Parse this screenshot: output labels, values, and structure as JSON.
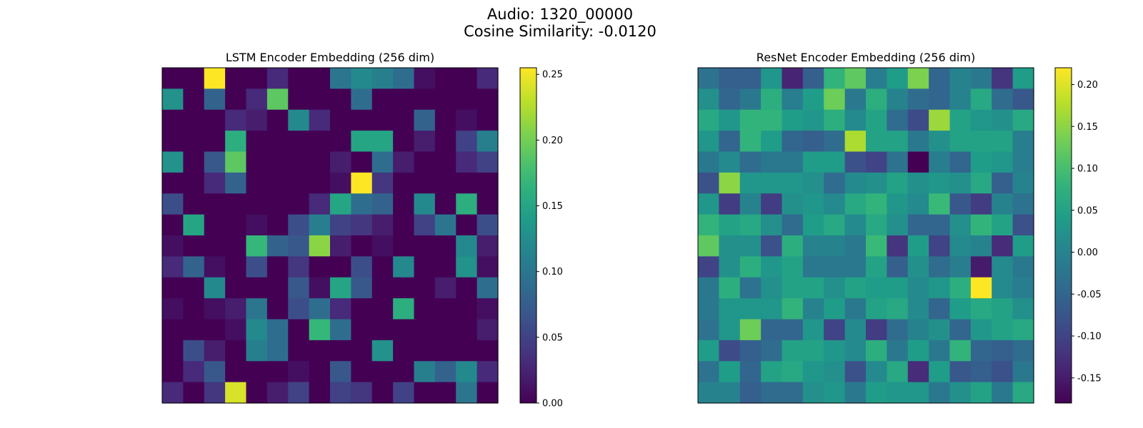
{
  "figure": {
    "title_line1": "Audio: 1320_00000",
    "title_line2": "Cosine Similarity: -0.0120"
  },
  "colormap": "viridis",
  "chart_data": [
    {
      "type": "heatmap",
      "title": "LSTM Encoder Embedding (256 dim)",
      "rows": 16,
      "cols": 16,
      "vmin": 0.0,
      "vmax": 0.255,
      "colorbar_ticks": [
        0.0,
        0.05,
        0.1,
        0.15,
        0.2,
        0.25
      ],
      "colorbar_tick_labels": [
        "0.00",
        "0.05",
        "0.10",
        "0.15",
        "0.20",
        "0.25"
      ],
      "values": [
        [
          0,
          0,
          0.255,
          0,
          0,
          0.03,
          0,
          0,
          0.1,
          0.12,
          0.11,
          0.09,
          0.01,
          0,
          0,
          0.03
        ],
        [
          0.13,
          0,
          0.08,
          0,
          0.03,
          0.19,
          0,
          0,
          0,
          0.09,
          0,
          0,
          0,
          0,
          0,
          0
        ],
        [
          0,
          0,
          0,
          0.03,
          0.02,
          0,
          0.12,
          0.03,
          0,
          0,
          0,
          0,
          0.08,
          0,
          0.01,
          0
        ],
        [
          0,
          0,
          0,
          0.16,
          0,
          0,
          0,
          0,
          0,
          0.15,
          0.15,
          0,
          0.02,
          0,
          0.05,
          0.11
        ],
        [
          0.13,
          0,
          0.07,
          0.19,
          0,
          0,
          0,
          0,
          0.02,
          0,
          0.09,
          0.02,
          0,
          0,
          0.03,
          0.05
        ],
        [
          0,
          0,
          0.03,
          0.08,
          0,
          0,
          0,
          0,
          0.01,
          0.255,
          0.04,
          0,
          0,
          0,
          0,
          0
        ],
        [
          0.06,
          0,
          0,
          0,
          0,
          0,
          0,
          0.03,
          0.15,
          0.09,
          0.08,
          0,
          0.12,
          0,
          0.16,
          0
        ],
        [
          0,
          0.15,
          0,
          0,
          0.01,
          0,
          0.06,
          0.11,
          0.05,
          0.04,
          0.02,
          0,
          0.05,
          0.1,
          0,
          0.06
        ],
        [
          0.01,
          0,
          0,
          0,
          0.17,
          0.08,
          0.07,
          0.21,
          0.02,
          0,
          0.01,
          0,
          0,
          0,
          0.12,
          0.02
        ],
        [
          0.03,
          0.08,
          0.01,
          0,
          0.06,
          0,
          0.04,
          0,
          0,
          0.06,
          0,
          0.12,
          0,
          0,
          0.13,
          0.01
        ],
        [
          0,
          0,
          0.12,
          0,
          0,
          0,
          0.07,
          0.01,
          0.15,
          0.07,
          0,
          0,
          0,
          0.02,
          0,
          0.09
        ],
        [
          0.01,
          0,
          0.01,
          0.02,
          0.1,
          0,
          0.06,
          0.09,
          0.03,
          0,
          0,
          0.16,
          0,
          0,
          0,
          0.01
        ],
        [
          0,
          0,
          0,
          0.01,
          0.12,
          0.09,
          0,
          0.17,
          0.09,
          0,
          0,
          0,
          0,
          0,
          0,
          0.02
        ],
        [
          0,
          0.06,
          0.02,
          0,
          0.11,
          0.09,
          0,
          0,
          0,
          0,
          0.13,
          0,
          0,
          0,
          0,
          0
        ],
        [
          0,
          0.03,
          0.07,
          0,
          0,
          0,
          0.01,
          0,
          0.07,
          0,
          0,
          0,
          0.11,
          0.08,
          0.12,
          0.03
        ],
        [
          0.03,
          0,
          0.04,
          0.24,
          0,
          0.02,
          0.05,
          0,
          0.05,
          0.04,
          0,
          0.05,
          0,
          0,
          0.1,
          0
        ]
      ]
    },
    {
      "type": "heatmap",
      "title": "ResNet Encoder Embedding (256 dim)",
      "rows": 16,
      "cols": 16,
      "vmin": -0.18,
      "vmax": 0.22,
      "colorbar_ticks": [
        -0.15,
        -0.1,
        -0.05,
        0.0,
        0.05,
        0.1,
        0.15,
        0.2
      ],
      "colorbar_tick_labels": [
        "-0.15",
        "-0.10",
        "-0.05",
        "0.00",
        "0.05",
        "0.10",
        "0.15",
        "0.20"
      ],
      "values": [
        [
          -0.03,
          -0.06,
          -0.06,
          0.03,
          -0.14,
          -0.06,
          0.08,
          0.12,
          -0.01,
          0.04,
          0.14,
          -0.05,
          0,
          -0.02,
          -0.12,
          0.04
        ],
        [
          0.02,
          -0.05,
          -0.02,
          0.07,
          -0.01,
          0.04,
          0.13,
          -0.02,
          0.07,
          0,
          -0.04,
          -0.05,
          0,
          0.06,
          -0.04,
          -0.07
        ],
        [
          0.06,
          0.03,
          0.08,
          0.08,
          0.04,
          0.03,
          0.07,
          0.01,
          0.05,
          -0.04,
          -0.09,
          0.16,
          0.05,
          0.03,
          0.02,
          0.06
        ],
        [
          0.03,
          -0.05,
          0.08,
          0.04,
          -0.05,
          -0.06,
          -0.04,
          0.17,
          0.05,
          0.05,
          -0.02,
          0.02,
          0.05,
          0.05,
          0.05,
          -0.01
        ],
        [
          -0.02,
          0.01,
          -0.04,
          -0.02,
          -0.02,
          0.04,
          0.04,
          -0.08,
          -0.1,
          -0.03,
          -0.18,
          -0.01,
          -0.05,
          0.04,
          0.03,
          -0.01
        ],
        [
          -0.08,
          0.15,
          0.03,
          0.03,
          0.03,
          0.02,
          -0.04,
          0.01,
          0.02,
          0.05,
          0.02,
          0.03,
          0.02,
          0.06,
          -0.06,
          0
        ],
        [
          0.03,
          -0.11,
          0,
          -0.11,
          0.02,
          0.03,
          0.01,
          0.06,
          0.08,
          0.03,
          0.01,
          0.09,
          -0.07,
          -0.11,
          0,
          -0.03
        ],
        [
          0.08,
          0.05,
          0.06,
          0.02,
          -0.04,
          0.04,
          0.06,
          0.01,
          0.06,
          0.02,
          -0.05,
          -0.05,
          0.02,
          0.08,
          0.05,
          -0.08
        ],
        [
          0.12,
          0.02,
          0.02,
          -0.08,
          0.07,
          0,
          0,
          -0.02,
          0.09,
          -0.12,
          0.04,
          -0.1,
          0.01,
          0,
          -0.13,
          0.04
        ],
        [
          -0.1,
          0.02,
          0.07,
          0.03,
          0.05,
          -0.02,
          -0.02,
          -0.02,
          0.05,
          -0.06,
          0.02,
          -0.04,
          -0.01,
          -0.15,
          0.01,
          -0.02
        ],
        [
          -0.02,
          0.07,
          -0.03,
          0.02,
          0.05,
          0.05,
          0.02,
          0.05,
          0.04,
          0.04,
          0.01,
          0.03,
          0.07,
          0.22,
          0.01,
          -0.01
        ],
        [
          -0.02,
          0.03,
          0.03,
          0.03,
          0.08,
          0,
          0.04,
          -0.02,
          0.05,
          0.06,
          0.01,
          -0.05,
          0.04,
          0.06,
          0.05,
          0.02
        ],
        [
          -0.03,
          0.03,
          0.13,
          -0.05,
          -0.05,
          0.03,
          -0.1,
          0.01,
          -0.11,
          -0.04,
          0,
          0.02,
          -0.05,
          0.03,
          0.05,
          0.06
        ],
        [
          0.04,
          -0.09,
          -0.06,
          -0.04,
          0.05,
          0.05,
          0.03,
          0.01,
          0.07,
          -0.02,
          0.04,
          -0.02,
          0.08,
          -0.05,
          -0.06,
          -0.04
        ],
        [
          -0.03,
          0.04,
          -0.05,
          0.05,
          0.06,
          0.03,
          0.02,
          -0.08,
          0.01,
          0.06,
          -0.13,
          0.04,
          -0.07,
          -0.06,
          -0.08,
          -0.02
        ],
        [
          0,
          0,
          -0.06,
          -0.04,
          -0.04,
          0.02,
          0.03,
          -0.02,
          0.04,
          0.03,
          0.03,
          -0.02,
          0.02,
          0.05,
          -0.02,
          0.06
        ]
      ]
    }
  ]
}
